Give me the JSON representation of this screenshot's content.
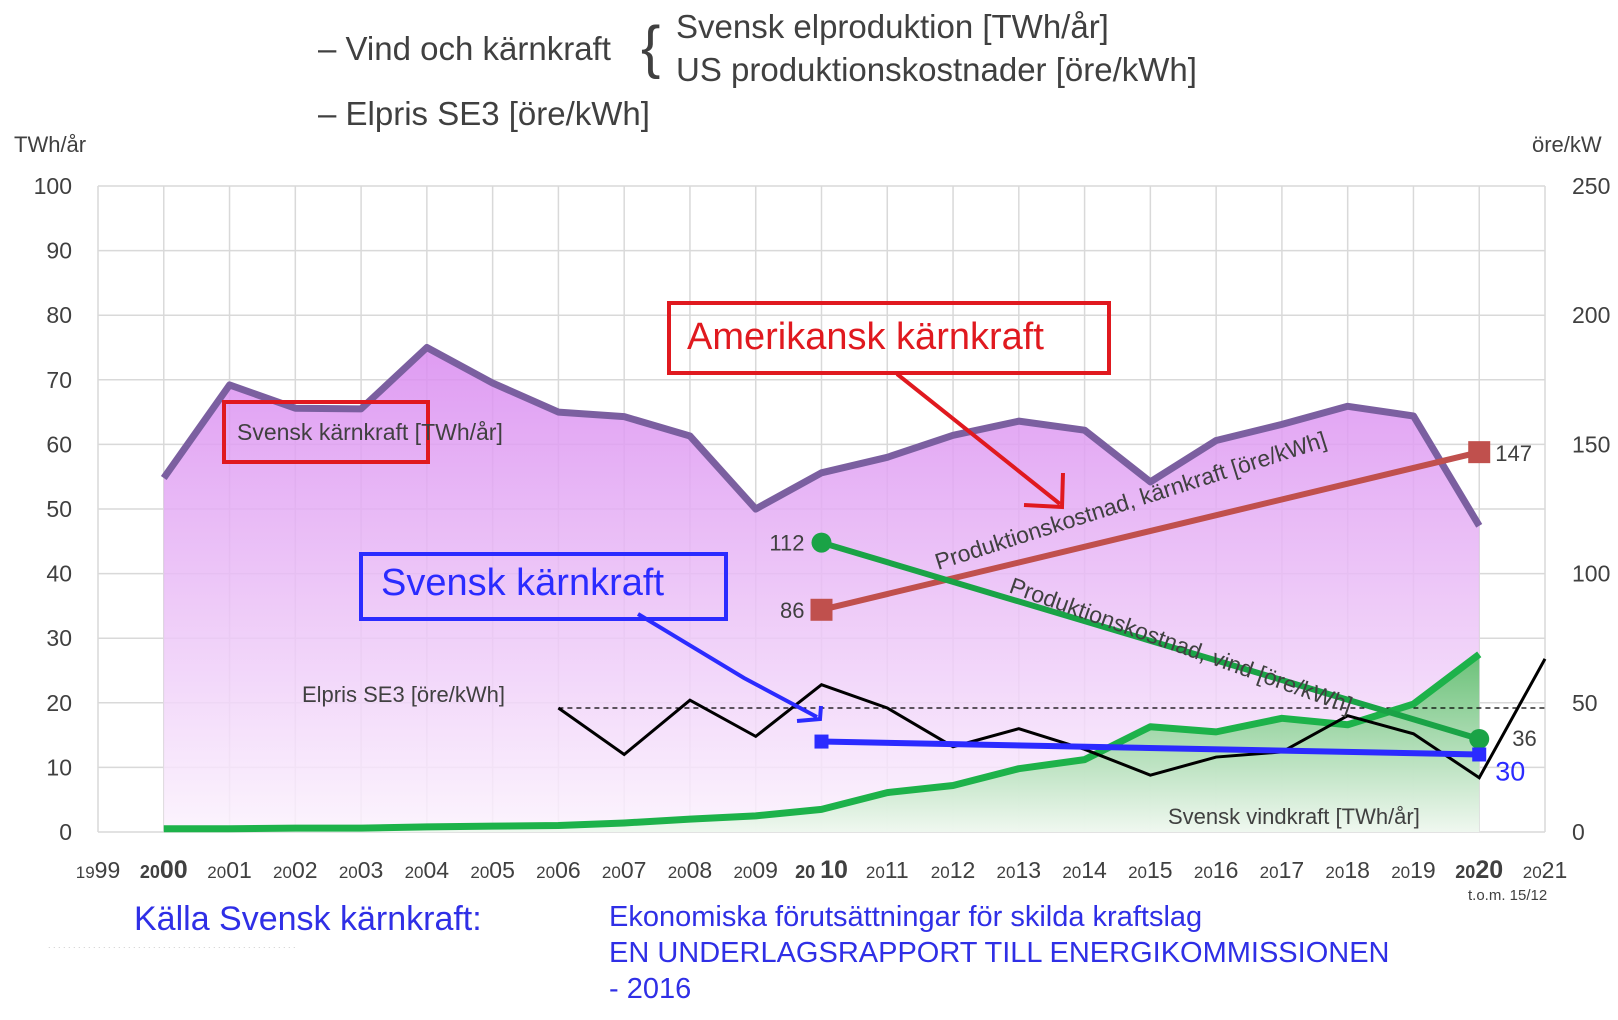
{
  "header": {
    "line1_prefix": "– Vind och kärnkraft",
    "brace": "{",
    "line1a": "Svensk elproduktion [TWh/år]",
    "line1b": "US produktionskostnader [öre/kWh]",
    "line2": "– Elpris SE3 [öre/kWh]"
  },
  "axes": {
    "left_unit": "TWh/år",
    "right_unit": "öre/kW",
    "left_ticks": [
      "0",
      "10",
      "20",
      "30",
      "40",
      "50",
      "60",
      "70",
      "80",
      "90",
      "100"
    ],
    "right_ticks": [
      "0",
      "50",
      "100",
      "150",
      "200",
      "250"
    ],
    "x_ticks": [
      {
        "year": 1999,
        "pre": "19",
        "post": "99",
        "bold": false
      },
      {
        "year": 2000,
        "pre": "20",
        "post": "00",
        "bold": true
      },
      {
        "year": 2001,
        "pre": "20",
        "post": "01",
        "bold": false
      },
      {
        "year": 2002,
        "pre": "20",
        "post": "02",
        "bold": false
      },
      {
        "year": 2003,
        "pre": "20",
        "post": "03",
        "bold": false
      },
      {
        "year": 2004,
        "pre": "20",
        "post": "04",
        "bold": false
      },
      {
        "year": 2005,
        "pre": "20",
        "post": "05",
        "bold": false
      },
      {
        "year": 2006,
        "pre": "20",
        "post": "06",
        "bold": false
      },
      {
        "year": 2007,
        "pre": "20",
        "post": "07",
        "bold": false
      },
      {
        "year": 2008,
        "pre": "20",
        "post": "08",
        "bold": false
      },
      {
        "year": 2009,
        "pre": "20",
        "post": "09",
        "bold": false
      },
      {
        "year": 2010,
        "pre": "20 ",
        "post": "10",
        "bold": true
      },
      {
        "year": 2011,
        "pre": "20",
        "post": "11",
        "bold": false
      },
      {
        "year": 2012,
        "pre": "20",
        "post": "12",
        "bold": false
      },
      {
        "year": 2013,
        "pre": "20",
        "post": "13",
        "bold": false
      },
      {
        "year": 2014,
        "pre": "20",
        "post": "14",
        "bold": false
      },
      {
        "year": 2015,
        "pre": "20",
        "post": "15",
        "bold": false
      },
      {
        "year": 2016,
        "pre": "20",
        "post": "16",
        "bold": false
      },
      {
        "year": 2017,
        "pre": "20",
        "post": "17",
        "bold": false
      },
      {
        "year": 2018,
        "pre": "20",
        "post": "18",
        "bold": false
      },
      {
        "year": 2019,
        "pre": "20",
        "post": "19",
        "bold": false
      },
      {
        "year": 2020,
        "pre": "20",
        "post": "20",
        "bold": true
      },
      {
        "year": 2021,
        "pre": "20",
        "post": "21",
        "bold": false
      }
    ],
    "note_2021": "t.o.m. 15/12"
  },
  "chart_data": {
    "type": "line",
    "x_range": [
      1999,
      2021
    ],
    "y_left_range": [
      0,
      100
    ],
    "y_right_range": [
      0,
      250
    ],
    "grid": true,
    "series": [
      {
        "name": "Svensk kärnkraft [TWh/år]",
        "axis": "left",
        "kind": "area",
        "color": "#7b5fa0",
        "fill_top": "#d98af0",
        "fill_bottom": "#fbf2fd",
        "x": [
          2000,
          2001,
          2002,
          2003,
          2004,
          2005,
          2006,
          2007,
          2008,
          2009,
          2010,
          2011,
          2012,
          2013,
          2014,
          2015,
          2016,
          2017,
          2018,
          2019,
          2020
        ],
        "y": [
          54.8,
          69.2,
          65.6,
          65.5,
          75.0,
          69.5,
          65.0,
          64.3,
          61.3,
          50.0,
          55.6,
          58.0,
          61.4,
          63.6,
          62.2,
          54.2,
          60.6,
          63.1,
          65.9,
          64.4,
          47.4
        ]
      },
      {
        "name": "Svensk vindkraft [TWh/år]",
        "axis": "left",
        "kind": "area",
        "color": "#1db24a",
        "fill_top": "#5cbf6a",
        "fill_bottom": "#eef8ee",
        "x": [
          2000,
          2001,
          2002,
          2003,
          2004,
          2005,
          2006,
          2007,
          2008,
          2009,
          2010,
          2011,
          2012,
          2013,
          2014,
          2015,
          2016,
          2017,
          2018,
          2019,
          2020
        ],
        "y": [
          0.5,
          0.5,
          0.6,
          0.6,
          0.8,
          0.9,
          1.0,
          1.4,
          2.0,
          2.5,
          3.5,
          6.1,
          7.2,
          9.8,
          11.2,
          16.3,
          15.5,
          17.6,
          16.6,
          19.8,
          27.5
        ]
      },
      {
        "name": "Elpris SE3 [öre/kWh]",
        "axis": "right",
        "kind": "line",
        "color": "#000000",
        "x": [
          2006,
          2007,
          2008,
          2009,
          2010,
          2011,
          2012,
          2013,
          2014,
          2015,
          2016,
          2017,
          2018,
          2019,
          2020,
          2021
        ],
        "y": [
          48,
          30,
          51,
          37,
          57,
          48,
          33,
          40,
          32,
          22,
          29,
          31,
          45,
          38,
          21,
          67
        ]
      },
      {
        "name": "Produktionskostnad, kärnkraft [öre/kWh]",
        "axis": "right",
        "kind": "line_markers",
        "marker": "square",
        "color": "#c0504d",
        "x": [
          2010,
          2020
        ],
        "y": [
          86,
          147
        ]
      },
      {
        "name": "Produktionskostnad, vind [öre/kWh]",
        "axis": "right",
        "kind": "line_markers",
        "marker": "circle",
        "color": "#1aa346",
        "x": [
          2010,
          2020
        ],
        "y": [
          112,
          36
        ]
      },
      {
        "name": "Svensk kärnkraft",
        "axis": "right",
        "kind": "line_markers",
        "marker": "square",
        "color": "#2b2bff",
        "x": [
          2010,
          2020
        ],
        "y": [
          35,
          30
        ]
      }
    ],
    "reference_line": {
      "axis": "right",
      "y": 48,
      "x_from": 2006,
      "x_to": 2021,
      "style": "dashed"
    },
    "point_labels": [
      {
        "text": "112",
        "series": 4,
        "index": 0,
        "side": "left"
      },
      {
        "text": "86",
        "series": 3,
        "index": 0,
        "side": "left"
      },
      {
        "text": "147",
        "series": 3,
        "index": 1,
        "side": "right"
      },
      {
        "text": "36",
        "series": 4,
        "index": 1,
        "side": "right"
      },
      {
        "text": "30",
        "series": 5,
        "index": 1,
        "side": "right"
      }
    ],
    "annotations": {
      "nuclear_label": "Svensk kärnkraft [TWh/år]",
      "wind_label": "Svensk vindkraft [TWh/år]",
      "price_label": "Elpris SE3 [öre/kWh]",
      "cost_nuclear_label": "Produktionskostnad, kärnkraft [öre/kWh]",
      "cost_wind_label": "Produktionskostnad, vind [öre/kWh]",
      "callout_us": "Amerikansk kärnkraft",
      "callout_se": "Svensk kärnkraft"
    }
  },
  "source": {
    "label": "Källa Svensk kärnkraft:",
    "line1": "Ekonomiska förutsättningar för skilda kraftslag",
    "line2": "EN UNDERLAGSRAPPORT TILL ENERGIKOMMISSIONEN",
    "line3": "- 2016"
  }
}
